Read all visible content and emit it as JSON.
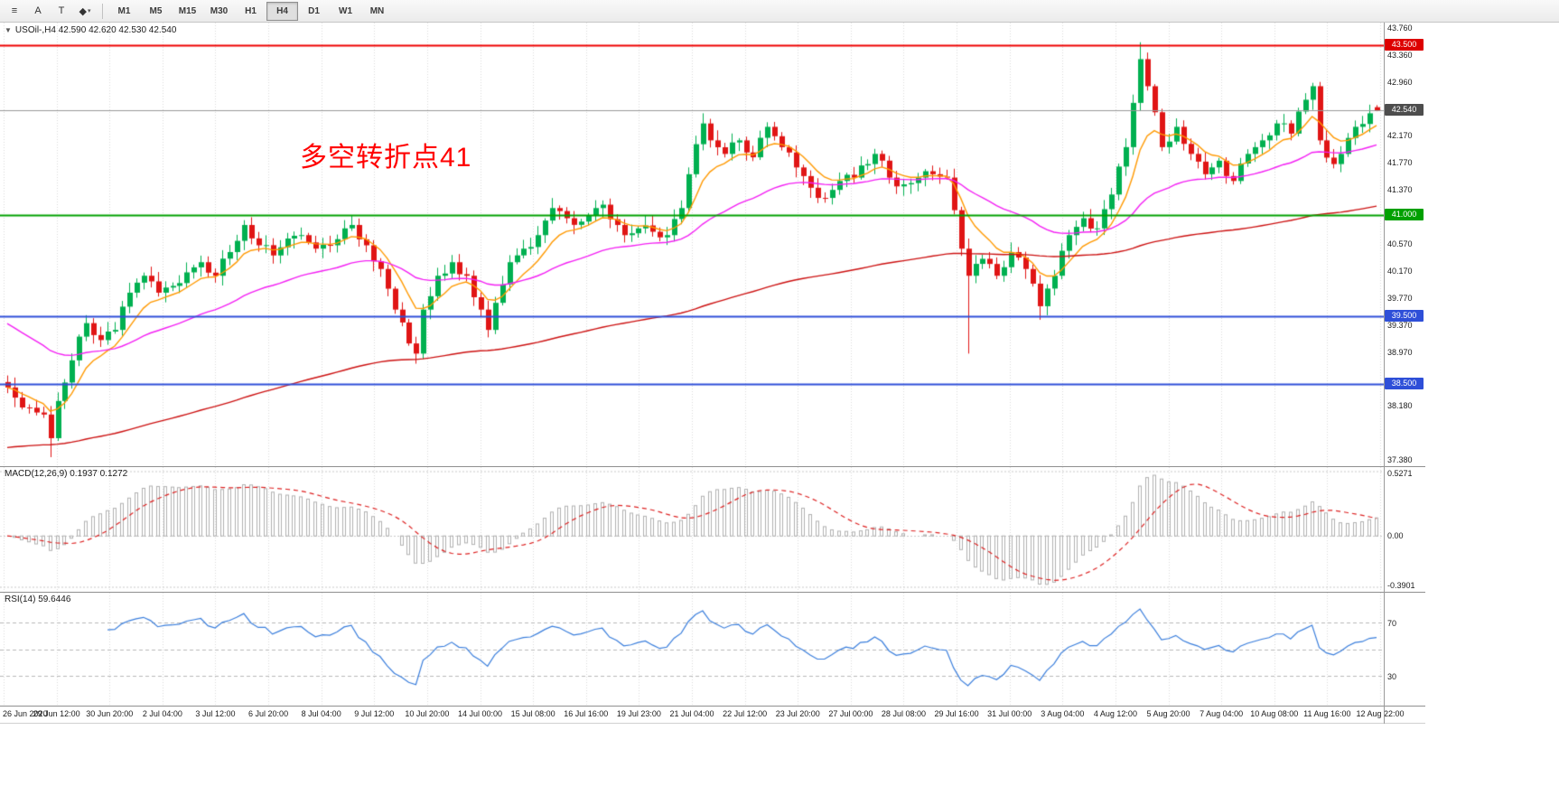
{
  "toolbar": {
    "tools": [
      {
        "name": "objects-list-icon",
        "glyph": "≡"
      },
      {
        "name": "text-tool-icon",
        "glyph": "A"
      },
      {
        "name": "text-label-tool-icon",
        "glyph": "T"
      },
      {
        "name": "shapes-tool-icon",
        "glyph": "◆",
        "caret": "▾"
      }
    ],
    "timeframes": [
      {
        "label": "M1",
        "active": false
      },
      {
        "label": "M5",
        "active": false
      },
      {
        "label": "M15",
        "active": false
      },
      {
        "label": "M30",
        "active": false
      },
      {
        "label": "H1",
        "active": false
      },
      {
        "label": "H4",
        "active": true
      },
      {
        "label": "D1",
        "active": false
      },
      {
        "label": "W1",
        "active": false
      },
      {
        "label": "MN",
        "active": false
      }
    ]
  },
  "chart": {
    "collapse_icon": "▼",
    "title": "USOil-,H4 42.590 42.620 42.530 42.540",
    "annotation": {
      "text": "多空转折点41",
      "color": "#ff0000"
    },
    "price_axis": {
      "min": 37.38,
      "max": 43.76,
      "ticks": [
        "43.760",
        "43.360",
        "42.960",
        "42.170",
        "41.770",
        "41.370",
        "40.570",
        "40.170",
        "39.770",
        "39.370",
        "38.970",
        "38.180",
        "37.380"
      ],
      "badges": [
        {
          "label": "43.500",
          "value": 43.5,
          "bg": "#dd0000",
          "fg": "#ffffff"
        },
        {
          "label": "42.540",
          "value": 42.54,
          "bg": "#4d4d4d",
          "fg": "#ffffff"
        },
        {
          "label": "41.000",
          "value": 41.0,
          "bg": "#00a000",
          "fg": "#ffffff"
        },
        {
          "label": "39.500",
          "value": 39.5,
          "bg": "#2e4fd8",
          "fg": "#ffffff"
        },
        {
          "label": "38.500",
          "value": 38.5,
          "bg": "#2e4fd8",
          "fg": "#ffffff"
        }
      ]
    },
    "hlines": [
      {
        "value": 43.5,
        "color": "#ee0000",
        "width": 2
      },
      {
        "value": 41.0,
        "color": "#00a000",
        "width": 2
      },
      {
        "value": 39.5,
        "color": "#2e4fd8",
        "width": 2
      },
      {
        "value": 38.5,
        "color": "#2e4fd8",
        "width": 2
      }
    ],
    "current_price": {
      "value": 42.54,
      "line_color": "#999999"
    }
  },
  "macd_panel": {
    "label": "MACD(12,26,9) 0.1937 0.1272",
    "axis_top": "0.5271",
    "axis_zero": "0.00",
    "axis_bottom": "-0.3901",
    "histogram_color": "#b0b0b0",
    "signal_color": "#dd2222",
    "params": {
      "fast": 12,
      "slow": 26,
      "signal": 9
    }
  },
  "rsi_panel": {
    "label": "RSI(14) 59.6446",
    "period": 14,
    "line_color": "#3a7edc",
    "range": [
      10,
      90
    ],
    "levels": [
      {
        "value": 70,
        "label": "70"
      },
      {
        "value": 50,
        "label": ""
      },
      {
        "value": 30,
        "label": "30"
      }
    ]
  },
  "time_axis": {
    "labels": [
      "26 Jun 2020",
      "29 Jun 12:00",
      "30 Jun 20:00",
      "2 Jul 04:00",
      "3 Jul 12:00",
      "6 Jul 20:00",
      "8 Jul 04:00",
      "9 Jul 12:00",
      "10 Jul 20:00",
      "14 Jul 00:00",
      "15 Jul 08:00",
      "16 Jul 16:00",
      "19 Jul 23:00",
      "21 Jul 04:00",
      "22 Jul 12:00",
      "23 Jul 20:00",
      "27 Jul 00:00",
      "28 Jul 08:00",
      "29 Jul 16:00",
      "31 Jul 00:00",
      "3 Aug 04:00",
      "4 Aug 12:00",
      "5 Aug 20:00",
      "7 Aug 04:00",
      "10 Aug 08:00",
      "11 Aug 16:00",
      "12 Aug 22:00"
    ]
  },
  "chart_data": {
    "type": "candlestick",
    "symbol": "USOil",
    "timeframe": "H4",
    "last_ohlc": {
      "open": 42.59,
      "high": 42.62,
      "low": 42.53,
      "close": 42.54
    },
    "num_candles": 192,
    "price_min": 37.38,
    "price_max": 43.76,
    "up_color": "#00b050",
    "down_color": "#e01515",
    "close_anchors": [
      [
        0,
        38.45
      ],
      [
        1,
        38.3
      ],
      [
        3,
        38.15
      ],
      [
        5,
        38.05
      ],
      [
        6,
        37.7
      ],
      [
        7,
        38.25
      ],
      [
        9,
        38.85
      ],
      [
        11,
        39.4
      ],
      [
        13,
        39.15
      ],
      [
        15,
        39.3
      ],
      [
        17,
        39.85
      ],
      [
        19,
        40.1
      ],
      [
        21,
        39.85
      ],
      [
        23,
        39.95
      ],
      [
        25,
        40.15
      ],
      [
        27,
        40.3
      ],
      [
        29,
        40.1
      ],
      [
        31,
        40.45
      ],
      [
        33,
        40.85
      ],
      [
        35,
        40.55
      ],
      [
        37,
        40.4
      ],
      [
        39,
        40.65
      ],
      [
        41,
        40.7
      ],
      [
        43,
        40.5
      ],
      [
        45,
        40.55
      ],
      [
        47,
        40.8
      ],
      [
        48,
        40.85
      ],
      [
        50,
        40.55
      ],
      [
        52,
        40.2
      ],
      [
        54,
        39.6
      ],
      [
        56,
        39.1
      ],
      [
        57,
        38.95
      ],
      [
        58,
        39.6
      ],
      [
        60,
        40.1
      ],
      [
        62,
        40.3
      ],
      [
        64,
        40.1
      ],
      [
        66,
        39.6
      ],
      [
        67,
        39.3
      ],
      [
        68,
        39.7
      ],
      [
        70,
        40.3
      ],
      [
        72,
        40.5
      ],
      [
        74,
        40.7
      ],
      [
        76,
        41.1
      ],
      [
        78,
        40.95
      ],
      [
        80,
        40.9
      ],
      [
        82,
        41.1
      ],
      [
        83,
        41.15
      ],
      [
        85,
        40.85
      ],
      [
        86,
        40.7
      ],
      [
        88,
        40.8
      ],
      [
        90,
        40.75
      ],
      [
        92,
        40.7
      ],
      [
        94,
        41.1
      ],
      [
        95,
        41.6
      ],
      [
        97,
        42.35
      ],
      [
        98,
        42.1
      ],
      [
        100,
        41.9
      ],
      [
        102,
        42.1
      ],
      [
        104,
        41.85
      ],
      [
        106,
        42.3
      ],
      [
        108,
        42.0
      ],
      [
        110,
        41.7
      ],
      [
        112,
        41.4
      ],
      [
        114,
        41.25
      ],
      [
        116,
        41.5
      ],
      [
        118,
        41.55
      ],
      [
        120,
        41.75
      ],
      [
        121,
        41.9
      ],
      [
        123,
        41.55
      ],
      [
        125,
        41.45
      ],
      [
        127,
        41.55
      ],
      [
        129,
        41.6
      ],
      [
        131,
        41.55
      ],
      [
        133,
        40.5
      ],
      [
        134,
        40.1
      ],
      [
        136,
        40.35
      ],
      [
        138,
        40.1
      ],
      [
        140,
        40.45
      ],
      [
        142,
        40.2
      ],
      [
        144,
        39.65
      ],
      [
        146,
        40.1
      ],
      [
        148,
        40.7
      ],
      [
        150,
        40.95
      ],
      [
        152,
        40.8
      ],
      [
        154,
        41.3
      ],
      [
        156,
        42.0
      ],
      [
        158,
        43.3
      ],
      [
        159,
        42.9
      ],
      [
        161,
        42.0
      ],
      [
        163,
        42.3
      ],
      [
        165,
        41.9
      ],
      [
        167,
        41.6
      ],
      [
        169,
        41.8
      ],
      [
        171,
        41.5
      ],
      [
        173,
        41.9
      ],
      [
        175,
        42.1
      ],
      [
        177,
        42.35
      ],
      [
        179,
        42.2
      ],
      [
        181,
        42.7
      ],
      [
        182,
        42.9
      ],
      [
        183,
        42.1
      ],
      [
        185,
        41.75
      ],
      [
        186,
        41.9
      ],
      [
        188,
        42.3
      ],
      [
        190,
        42.5
      ],
      [
        191,
        42.54
      ]
    ],
    "wick_overrides": {
      "6": {
        "low": 37.42
      },
      "97": {
        "high": 42.5
      },
      "134": {
        "low": 38.95
      },
      "144": {
        "low": 39.45
      },
      "158": {
        "high": 43.55
      },
      "182": {
        "high": 42.95
      }
    },
    "moving_averages": [
      {
        "period": 8,
        "color": "#ff9900",
        "seed": null
      },
      {
        "period": 34,
        "color": "#f320f3",
        "seed": 39.45
      },
      {
        "period": 144,
        "color": "#cc1111",
        "seed": 37.55
      }
    ]
  }
}
